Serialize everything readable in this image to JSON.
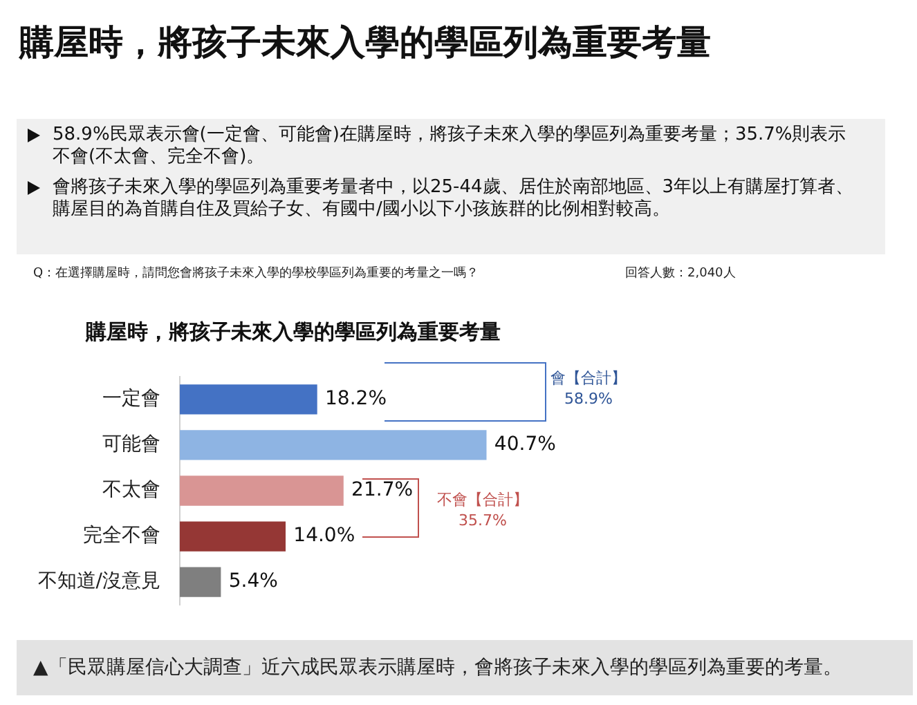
{
  "chart_data": {
    "type": "bar",
    "orientation": "horizontal",
    "title": "購屋時，將孩子未來入學的學區列為重要考量",
    "subtitle": "購屋時，將孩子未來入學的學區列為重要考量",
    "categories": [
      "一定會",
      "可能會",
      "不太會",
      "完全不會",
      "不知道/沒意見"
    ],
    "values": [
      18.2,
      40.7,
      21.7,
      14.0,
      5.4
    ],
    "colors": [
      "#4472c4",
      "#8eb4e3",
      "#d99594",
      "#953735",
      "#7f7f7f"
    ],
    "value_labels": [
      "18.2%",
      "40.7%",
      "21.7%",
      "14.0%",
      "5.4%"
    ],
    "annotations": [
      "58.9%民眾表示會(一定會、可能會)在購屋時，將孩子未來入學的學區列為重要考量；35.7%則表示不會(不太會、完全不會)。",
      "會將孩子未來入學的學區列為重要考量者中，以25-44歲、居住於南部地區、3年以上有購屋打算者、購屋目的為首購自住及買給子女、有國中/國小以下小孩族群的比例相對較高。",
      "Q：在選擇購屋時，請問您會將孩子未來入學的學校學區列為重要的考量之一嗎？",
      "回答人數：2,040人",
      "▲「民眾購屋信心大調查」近六成民眾表示購屋時，會將孩子未來入學的學區列為重要的考量。",
      "會【合計】\n58.9%",
      "不會【合計】\n35.7%"
    ],
    "legend": false,
    "grid": false
  }
}
